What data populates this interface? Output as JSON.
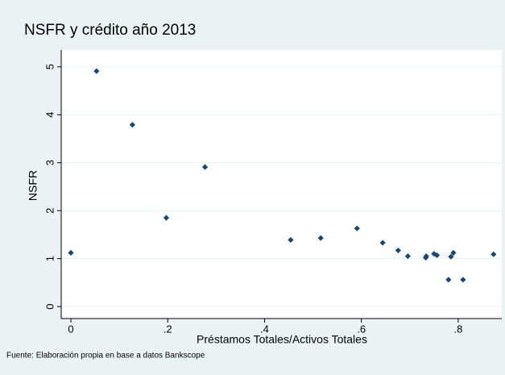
{
  "chart_data": {
    "type": "scatter",
    "title": "NSFR y crédito año 2013",
    "x_label": "Préstamos Totales/Activos Totales",
    "y_label": "NSFR",
    "source": "Fuente: Elaboración propia en base a datos Bankscope",
    "x": [
      0,
      0.053,
      0.127,
      0.197,
      0.277,
      0.454,
      0.516,
      0.591,
      0.644,
      0.676,
      0.696,
      0.733,
      0.734,
      0.75,
      0.756,
      0.78,
      0.785,
      0.79,
      0.81,
      0.873
    ],
    "values": [
      1.12,
      4.91,
      3.79,
      1.85,
      2.91,
      1.39,
      1.43,
      1.63,
      1.33,
      1.17,
      1.05,
      1.02,
      1.05,
      1.1,
      1.07,
      0.56,
      1.04,
      1.12,
      0.56,
      1.09
    ],
    "color": "#1a476f",
    "xlim": [
      -0.02,
      0.89
    ],
    "ylim": [
      -0.25,
      5.35
    ],
    "xticks": [
      0,
      {
        "value": 0.2,
        "label": ".2"
      },
      {
        "value": 0.4,
        "label": ".4"
      },
      {
        "value": 0.6,
        "label": ".6"
      },
      {
        "value": 0.8,
        "label": ".8"
      }
    ],
    "yticks": [
      0,
      1,
      2,
      3,
      4,
      5
    ],
    "grid": true
  }
}
